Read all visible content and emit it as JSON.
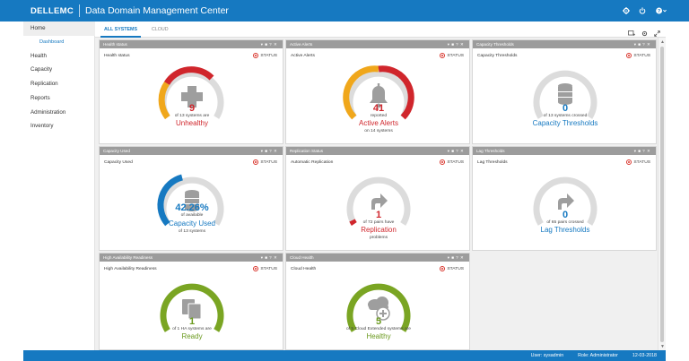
{
  "header": {
    "logo": "DELLEMC",
    "title": "Data Domain Management Center"
  },
  "icons": [
    "gear-icon",
    "power-icon",
    "help-icon",
    "chevron-down-icon"
  ],
  "sidebar": {
    "items": [
      {
        "label": "Home"
      },
      {
        "label": "Dashboard"
      },
      {
        "label": "Health"
      },
      {
        "label": "Capacity"
      },
      {
        "label": "Replication"
      },
      {
        "label": "Reports"
      },
      {
        "label": "Administration"
      },
      {
        "label": "Inventory"
      }
    ]
  },
  "tabs": [
    {
      "label": "ALL SYSTEMS",
      "active": true
    },
    {
      "label": "CLOUD",
      "active": false
    }
  ],
  "colors": {
    "brand": "#1679c1",
    "red": "#d0262c",
    "orange": "#f0a71b",
    "green": "#7aa523",
    "gray": "#dcdcdc"
  },
  "panels": [
    {
      "header": "Health status",
      "subtitle": "Health status",
      "status": "STATUS",
      "value": "9",
      "line1": "of 13 systems are",
      "label": "Unhealthy",
      "line3": "",
      "icon": "plus-icon",
      "color": "red"
    },
    {
      "header": "Active Alerts",
      "subtitle": "Active Alerts",
      "status": "STATUS",
      "value": "41",
      "line1": "reported",
      "label": "Active Alerts",
      "line3": "on 14 systems",
      "icon": "bell-icon",
      "color": "red"
    },
    {
      "header": "Capacity Thresholds",
      "subtitle": "Capacity Thresholds",
      "status": "STATUS",
      "value": "0",
      "line1": "of 13 systems crossed",
      "label": "Capacity Thresholds",
      "line3": "",
      "icon": "database-icon",
      "color": "blue"
    },
    {
      "header": "Capacity Used",
      "subtitle": "Capacity Used",
      "status": "STATUS",
      "value": "42.26%",
      "line1": "of available",
      "label": "Capacity Used",
      "line3": "of 13 systems",
      "icon": "database-icon",
      "color": "blue"
    },
    {
      "header": "Replication Status",
      "subtitle": "Automatic Replication",
      "status": "STATUS",
      "value": "1",
      "line1": "of 72 pairs have",
      "label": "Replication",
      "line3": "problems",
      "icon": "arrow-right-icon",
      "color": "red"
    },
    {
      "header": "Lag Thresholds",
      "subtitle": "Lag Thresholds",
      "status": "STATUS",
      "value": "0",
      "line1": "of 65 pairs crossed",
      "label": "Lag Thresholds",
      "line3": "",
      "icon": "arrow-right-icon",
      "color": "blue"
    },
    {
      "header": "High Availability Readiness",
      "subtitle": "High Availability Readiness",
      "status": "STATUS",
      "value": "1",
      "line1": "of 1 HA systems are",
      "label": "Ready",
      "line3": "",
      "icon": "ha-servers-icon",
      "color": "green"
    },
    {
      "header": "Cloud Health",
      "subtitle": "Cloud Health",
      "status": "STATUS",
      "value": "5",
      "line1": "of 5 Cloud Extended systems are",
      "label": "Healthy",
      "line3": "",
      "icon": "cloud-health-icon",
      "color": "green"
    }
  ],
  "statusbar": {
    "user": "User: sysadmin",
    "role": "Role: Administrator",
    "date": "12-03-2018"
  }
}
